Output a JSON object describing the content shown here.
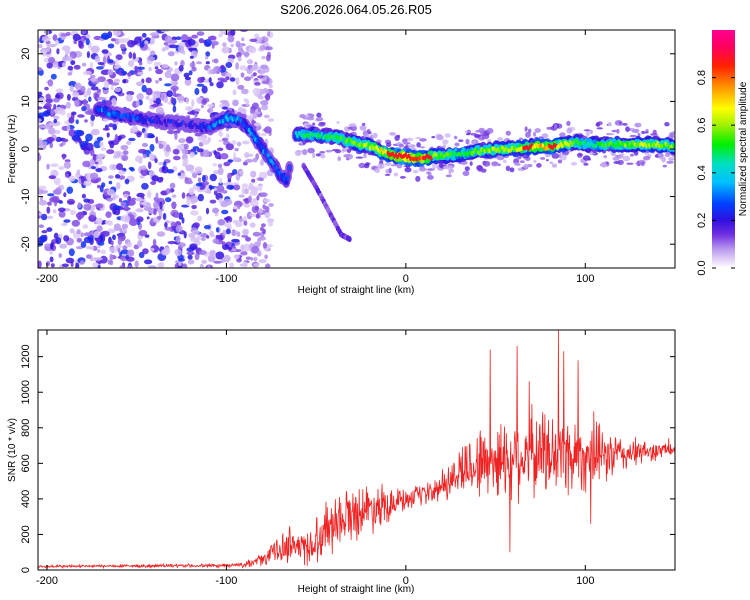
{
  "title": "S206.2026.064.05.26.R05",
  "chart_data": [
    {
      "type": "heatmap",
      "name": "spectrogram",
      "xlabel": "Height of straight line (km)",
      "ylabel": "Frequency (Hz)",
      "xlim": [
        -205,
        150
      ],
      "ylim": [
        -25,
        25
      ],
      "x_ticks": [
        -200,
        -100,
        0,
        100
      ],
      "y_ticks": [
        20,
        10,
        0,
        -10,
        -20
      ],
      "colorbar": {
        "label": "Normalized spectral amplitude",
        "range": [
          0,
          1
        ],
        "ticks": [
          0.0,
          0.2,
          0.4,
          0.6,
          0.8
        ],
        "colors": [
          "#ffffff",
          "#e8d8f8",
          "#b898f0",
          "#7030e0",
          "#3010e0",
          "#0040ff",
          "#00c0ff",
          "#00e0c0",
          "#00f000",
          "#a0f000",
          "#ffff00",
          "#ffa000",
          "#ff2000",
          "#ff0060",
          "#ff0090"
        ]
      },
      "ridge": {
        "x": [
          -172,
          -165,
          -158,
          -150,
          -140,
          -130,
          -120,
          -110,
          -100,
          -92,
          -85,
          -80,
          -75,
          -70,
          -66,
          -62,
          -55,
          -48,
          -40,
          -30,
          -20,
          -10,
          -5,
          0,
          5,
          10,
          15,
          20,
          30,
          40,
          50,
          60,
          70,
          80,
          90,
          95,
          100,
          110,
          120,
          130,
          140,
          150
        ],
        "y": [
          8.5,
          7.5,
          7.0,
          6.5,
          6.0,
          5.5,
          5.0,
          4.5,
          6.5,
          6.0,
          3.0,
          0.0,
          -2.5,
          -5.5,
          -6.5,
          3.0,
          3.0,
          2.8,
          2.5,
          1.5,
          0.5,
          -1.0,
          -1.5,
          -1.5,
          -2.0,
          -2.0,
          -1.5,
          -1.5,
          -1.0,
          -0.5,
          0.0,
          0.0,
          0.5,
          0.5,
          1.0,
          1.5,
          1.0,
          1.0,
          1.0,
          1.0,
          1.0,
          0.5
        ],
        "amp": [
          0.3,
          0.3,
          0.25,
          0.25,
          0.2,
          0.2,
          0.2,
          0.25,
          0.35,
          0.3,
          0.3,
          0.3,
          0.3,
          0.3,
          0.25,
          0.4,
          0.45,
          0.45,
          0.5,
          0.55,
          0.6,
          0.7,
          0.8,
          0.9,
          0.85,
          0.8,
          0.6,
          0.55,
          0.5,
          0.55,
          0.6,
          0.6,
          0.7,
          0.75,
          0.6,
          0.5,
          0.45,
          0.5,
          0.55,
          0.6,
          0.6,
          0.55
        ]
      },
      "secondary_branch": {
        "x": [
          -57,
          -50,
          -43,
          -36,
          -31
        ],
        "y": [
          -3.5,
          -8,
          -13,
          -18,
          -19
        ]
      },
      "noise_region": {
        "x_from": -205,
        "x_to": -85,
        "density": "high"
      }
    },
    {
      "type": "line",
      "name": "snr",
      "xlabel": "Height of straight line (km)",
      "ylabel": "SNR (10 * v/v)",
      "xlim": [
        -205,
        150
      ],
      "ylim": [
        0,
        1350
      ],
      "x_ticks": [
        -200,
        -100,
        0,
        100
      ],
      "y_ticks": [
        0,
        200,
        400,
        600,
        800,
        1000,
        1200
      ],
      "color": "#ee2222",
      "envelope": {
        "x": [
          -205,
          -100,
          -90,
          -80,
          -75,
          -70,
          -65,
          -60,
          -55,
          -50,
          -45,
          -40,
          -30,
          -20,
          -10,
          0,
          10,
          20,
          25,
          30,
          40,
          50,
          60,
          70,
          80,
          90,
          100,
          110,
          120,
          130,
          140,
          150
        ],
        "mean": [
          20,
          25,
          30,
          60,
          90,
          120,
          150,
          140,
          120,
          170,
          230,
          280,
          320,
          350,
          380,
          390,
          420,
          460,
          500,
          560,
          600,
          620,
          640,
          650,
          660,
          650,
          640,
          640,
          650,
          660,
          670,
          680
        ],
        "spread": [
          8,
          10,
          15,
          35,
          60,
          80,
          100,
          100,
          110,
          130,
          150,
          160,
          150,
          140,
          110,
          60,
          60,
          80,
          100,
          150,
          200,
          220,
          230,
          250,
          250,
          230,
          200,
          160,
          110,
          70,
          50,
          40
        ]
      },
      "peaks": [
        {
          "x": 47,
          "y": 1240
        },
        {
          "x": 62,
          "y": 1260
        },
        {
          "x": 85,
          "y": 1350
        },
        {
          "x": 88,
          "y": 1230
        },
        {
          "x": 96,
          "y": 1180
        },
        {
          "x": 58,
          "y": 100
        },
        {
          "x": 103,
          "y": 260
        }
      ]
    }
  ]
}
